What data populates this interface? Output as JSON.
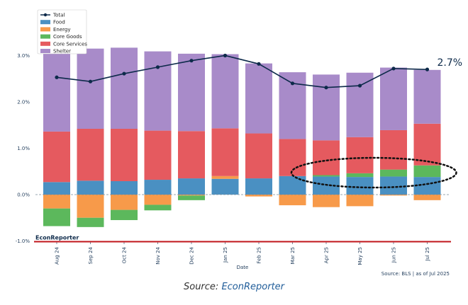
{
  "chart_data": {
    "type": "bar",
    "stacked": true,
    "categories": [
      "Aug 24",
      "Sep 24",
      "Oct 24",
      "Nov 24",
      "Dec 24",
      "Jan 25",
      "Feb 25",
      "Mar 25",
      "Apr 25",
      "May 25",
      "Jun 25",
      "Jul 25"
    ],
    "series": [
      {
        "name": "Food",
        "color": "#4a90c2",
        "values": [
          0.27,
          0.3,
          0.29,
          0.32,
          0.35,
          0.34,
          0.35,
          0.4,
          0.39,
          0.38,
          0.39,
          0.38
        ]
      },
      {
        "name": "Energy",
        "color": "#f79a4a",
        "values": [
          -0.3,
          -0.5,
          -0.33,
          -0.22,
          -0.02,
          0.06,
          -0.04,
          -0.23,
          -0.27,
          -0.25,
          -0.02,
          -0.12
        ]
      },
      {
        "name": "Core Goods",
        "color": "#5cb85c",
        "values": [
          -0.38,
          -0.2,
          -0.22,
          -0.12,
          -0.1,
          0.0,
          0.0,
          0.0,
          0.03,
          0.08,
          0.15,
          0.25
        ]
      },
      {
        "name": "Core Services",
        "color": "#e55a5f",
        "values": [
          1.09,
          1.12,
          1.13,
          1.06,
          1.02,
          1.03,
          0.97,
          0.8,
          0.75,
          0.78,
          0.85,
          0.9
        ]
      },
      {
        "name": "Shelter",
        "color": "#a88bc9",
        "values": [
          1.77,
          1.73,
          1.75,
          1.71,
          1.67,
          1.6,
          1.51,
          1.44,
          1.42,
          1.39,
          1.35,
          1.16
        ]
      }
    ],
    "total": {
      "name": "Total",
      "color": "#0d2a4a",
      "values": [
        2.53,
        2.44,
        2.61,
        2.75,
        2.89,
        3.0,
        2.82,
        2.4,
        2.31,
        2.35,
        2.72,
        2.7
      ]
    },
    "end_label": "2.7%",
    "ylim": [
      -1.0,
      3.5
    ],
    "yticks": [
      -1.0,
      0.0,
      1.0,
      2.0,
      3.0
    ],
    "ytick_labels": [
      "-1.0%",
      "0.0%",
      "1.0%",
      "2.0%",
      "3.0%"
    ],
    "xlabel": "Date",
    "ylabel": "",
    "title": "",
    "legend_position": "top-left",
    "grid": false,
    "zero_line": "dashed",
    "highlight_ellipse_categories": [
      "Apr 25",
      "Jul 25"
    ]
  },
  "brand": "EconReporter",
  "source_note": "Source: BLS | as of Jul 2025",
  "caption": {
    "prefix": "Source: ",
    "link": "EconReporter"
  },
  "colors": {
    "brand_rule": "#c0151b",
    "total_line": "#0d2a4a"
  }
}
